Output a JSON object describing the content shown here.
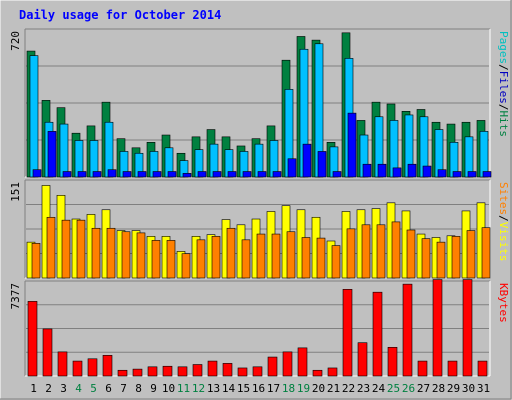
{
  "chart_data": {
    "type": "bar",
    "title": "Daily usage for October 2014",
    "categories": [
      "1",
      "2",
      "3",
      "4",
      "5",
      "6",
      "7",
      "8",
      "9",
      "10",
      "11",
      "12",
      "13",
      "14",
      "15",
      "16",
      "17",
      "18",
      "19",
      "20",
      "21",
      "22",
      "23",
      "24",
      "25",
      "26",
      "27",
      "28",
      "29",
      "30",
      "31"
    ],
    "weekend_days": [
      "4",
      "5",
      "11",
      "12",
      "18",
      "19",
      "25",
      "26"
    ],
    "panels": [
      {
        "name": "hits-files-pages",
        "ymax_label": "720",
        "ylim": [
          0,
          800
        ],
        "legend": [
          {
            "text": "Pages",
            "color": "#00c0c0"
          },
          {
            "text": "/",
            "color": "#000000"
          },
          {
            "text": "Files",
            "color": "#0000c0"
          },
          {
            "text": "/",
            "color": "#000000"
          },
          {
            "text": "Hits",
            "color": "#008040"
          }
        ],
        "series": [
          {
            "name": "Hits",
            "color": "#008040",
            "values": [
              690,
              420,
              380,
              240,
              280,
              410,
              210,
              160,
              190,
              230,
              130,
              220,
              260,
              220,
              170,
              210,
              280,
              640,
              770,
              750,
              190,
              790,
              310,
              410,
              400,
              360,
              370,
              300,
              290,
              300,
              310
            ]
          },
          {
            "name": "Files",
            "color": "#00c0ff",
            "values": [
              665,
              300,
              290,
              200,
              200,
              300,
              140,
              130,
              140,
              160,
              90,
              150,
              180,
              150,
              140,
              180,
              200,
              480,
              700,
              730,
              165,
              650,
              230,
              330,
              310,
              340,
              330,
              260,
              190,
              220,
              250
            ]
          },
          {
            "name": "Pages",
            "color": "#0000ff",
            "values": [
              40,
              250,
              30,
              30,
              30,
              40,
              30,
              30,
              30,
              30,
              20,
              30,
              30,
              30,
              30,
              30,
              30,
              100,
              180,
              140,
              30,
              350,
              70,
              70,
              50,
              70,
              60,
              40,
              30,
              30,
              30
            ]
          }
        ]
      },
      {
        "name": "visits-sites",
        "ymax_label": "151",
        "ylim": [
          0,
          166
        ],
        "legend": [
          {
            "text": "Sites",
            "color": "#ff8000"
          },
          {
            "text": "/",
            "color": "#000000"
          },
          {
            "text": "Visits",
            "color": "#ffff00"
          }
        ],
        "series": [
          {
            "name": "Visits",
            "color": "#ffff00",
            "values": [
              62,
              160,
              143,
              102,
              110,
              118,
              82,
              82,
              72,
              72,
              46,
              72,
              75,
              101,
              92,
              102,
              115,
              125,
              118,
              105,
              64,
              115,
              118,
              120,
              130,
              116,
              76,
              70,
              73,
              116,
              130
            ]
          },
          {
            "name": "Sites",
            "color": "#ff8000",
            "values": [
              60,
              105,
              100,
              100,
              86,
              86,
              80,
              78,
              65,
              65,
              42,
              66,
              72,
              86,
              66,
              76,
              76,
              80,
              70,
              69,
              56,
              85,
              92,
              92,
              97,
              83,
              68,
              62,
              72,
              82,
              87
            ]
          }
        ]
      },
      {
        "name": "kbytes",
        "ymax_label": "7377",
        "ylim": [
          0,
          8100
        ],
        "legend": [
          {
            "text": "KBytes",
            "color": "#ff0000"
          }
        ],
        "series": [
          {
            "name": "KBytes",
            "color": "#ff0000",
            "values": [
              6500,
              4100,
              2100,
              1300,
              1500,
              1800,
              500,
              600,
              800,
              850,
              800,
              1000,
              1300,
              1100,
              700,
              800,
              1650,
              2100,
              2450,
              500,
              700,
              7550,
              2900,
              7300,
              2500,
              8000,
              1300,
              8400,
              1300,
              8400,
              1300
            ]
          }
        ]
      }
    ]
  }
}
